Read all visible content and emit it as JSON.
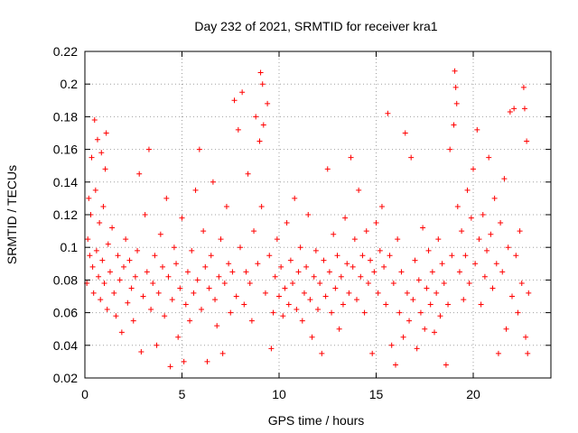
{
  "chart_data": {
    "type": "scatter",
    "title": "Day 232 of 2021, SRMTID for receiver kra1",
    "xlabel": "GPS time / hours",
    "ylabel": "SRMTID / TECUs",
    "xlim": [
      0,
      24
    ],
    "ylim": [
      0.02,
      0.22
    ],
    "x_ticks": [
      0,
      5,
      10,
      15,
      20
    ],
    "x_tick_labels": [
      "0",
      "5",
      "10",
      "15",
      "20"
    ],
    "y_ticks": [
      0.02,
      0.04,
      0.06,
      0.08,
      0.1,
      0.12,
      0.14,
      0.16,
      0.18,
      0.2,
      0.22
    ],
    "y_tick_labels": [
      "0.02",
      "0.04",
      "0.06",
      "0.08",
      "0.1",
      "0.12",
      "0.14",
      "0.16",
      "0.18",
      "0.2",
      "0.22"
    ],
    "grid": true,
    "marker": "+",
    "marker_color": "#ff0000",
    "series": [
      {
        "name": "SRMTID",
        "points": [
          [
            0.1,
            0.078
          ],
          [
            0.15,
            0.105
          ],
          [
            0.2,
            0.13
          ],
          [
            0.25,
            0.095
          ],
          [
            0.3,
            0.12
          ],
          [
            0.35,
            0.155
          ],
          [
            0.4,
            0.088
          ],
          [
            0.45,
            0.072
          ],
          [
            0.5,
            0.178
          ],
          [
            0.55,
            0.135
          ],
          [
            0.6,
            0.098
          ],
          [
            0.65,
            0.166
          ],
          [
            0.7,
            0.082
          ],
          [
            0.75,
            0.115
          ],
          [
            0.8,
            0.068
          ],
          [
            0.85,
            0.158
          ],
          [
            0.9,
            0.092
          ],
          [
            0.95,
            0.125
          ],
          [
            1.0,
            0.078
          ],
          [
            1.05,
            0.148
          ],
          [
            1.1,
            0.17
          ],
          [
            1.15,
            0.062
          ],
          [
            1.2,
            0.102
          ],
          [
            1.3,
            0.085
          ],
          [
            1.4,
            0.112
          ],
          [
            1.5,
            0.072
          ],
          [
            1.6,
            0.058
          ],
          [
            1.7,
            0.095
          ],
          [
            1.8,
            0.08
          ],
          [
            1.9,
            0.048
          ],
          [
            2.0,
            0.088
          ],
          [
            2.1,
            0.105
          ],
          [
            2.2,
            0.066
          ],
          [
            2.3,
            0.092
          ],
          [
            2.4,
            0.075
          ],
          [
            2.5,
            0.055
          ],
          [
            2.6,
            0.082
          ],
          [
            2.7,
            0.098
          ],
          [
            2.8,
            0.145
          ],
          [
            2.9,
            0.036
          ],
          [
            3.0,
            0.07
          ],
          [
            3.1,
            0.12
          ],
          [
            3.2,
            0.085
          ],
          [
            3.3,
            0.16
          ],
          [
            3.4,
            0.062
          ],
          [
            3.5,
            0.078
          ],
          [
            3.6,
            0.095
          ],
          [
            3.7,
            0.04
          ],
          [
            3.8,
            0.072
          ],
          [
            3.9,
            0.108
          ],
          [
            4.0,
            0.088
          ],
          [
            4.1,
            0.058
          ],
          [
            4.2,
            0.13
          ],
          [
            4.3,
            0.082
          ],
          [
            4.4,
            0.027
          ],
          [
            4.5,
            0.068
          ],
          [
            4.6,
            0.1
          ],
          [
            4.7,
            0.09
          ],
          [
            4.8,
            0.045
          ],
          [
            4.9,
            0.075
          ],
          [
            5.0,
            0.118
          ],
          [
            5.1,
            0.03
          ],
          [
            5.2,
            0.065
          ],
          [
            5.3,
            0.085
          ],
          [
            5.4,
            0.055
          ],
          [
            5.5,
            0.098
          ],
          [
            5.6,
            0.072
          ],
          [
            5.7,
            0.135
          ],
          [
            5.8,
            0.08
          ],
          [
            5.9,
            0.16
          ],
          [
            6.0,
            0.062
          ],
          [
            6.1,
            0.11
          ],
          [
            6.2,
            0.088
          ],
          [
            6.3,
            0.03
          ],
          [
            6.4,
            0.075
          ],
          [
            6.5,
            0.095
          ],
          [
            6.6,
            0.14
          ],
          [
            6.7,
            0.068
          ],
          [
            6.8,
            0.052
          ],
          [
            6.9,
            0.082
          ],
          [
            7.0,
            0.105
          ],
          [
            7.1,
            0.035
          ],
          [
            7.2,
            0.078
          ],
          [
            7.3,
            0.125
          ],
          [
            7.4,
            0.09
          ],
          [
            7.5,
            0.06
          ],
          [
            7.6,
            0.085
          ],
          [
            7.7,
            0.19
          ],
          [
            7.8,
            0.07
          ],
          [
            7.9,
            0.172
          ],
          [
            8.0,
            0.1
          ],
          [
            8.1,
            0.195
          ],
          [
            8.2,
            0.065
          ],
          [
            8.3,
            0.085
          ],
          [
            8.4,
            0.145
          ],
          [
            8.5,
            0.078
          ],
          [
            8.6,
            0.055
          ],
          [
            8.7,
            0.11
          ],
          [
            8.8,
            0.18
          ],
          [
            8.9,
            0.09
          ],
          [
            9.0,
            0.165
          ],
          [
            9.05,
            0.207
          ],
          [
            9.1,
            0.125
          ],
          [
            9.15,
            0.2
          ],
          [
            9.2,
            0.175
          ],
          [
            9.3,
            0.072
          ],
          [
            9.4,
            0.188
          ],
          [
            9.5,
            0.095
          ],
          [
            9.6,
            0.038
          ],
          [
            9.7,
            0.06
          ],
          [
            9.8,
            0.082
          ],
          [
            9.9,
            0.105
          ],
          [
            10.0,
            0.07
          ],
          [
            10.1,
            0.088
          ],
          [
            10.2,
            0.058
          ],
          [
            10.3,
            0.075
          ],
          [
            10.4,
            0.115
          ],
          [
            10.5,
            0.065
          ],
          [
            10.6,
            0.092
          ],
          [
            10.7,
            0.078
          ],
          [
            10.8,
            0.13
          ],
          [
            10.9,
            0.062
          ],
          [
            11.0,
            0.085
          ],
          [
            11.1,
            0.1
          ],
          [
            11.2,
            0.055
          ],
          [
            11.3,
            0.072
          ],
          [
            11.4,
            0.088
          ],
          [
            11.5,
            0.12
          ],
          [
            11.6,
            0.068
          ],
          [
            11.7,
            0.045
          ],
          [
            11.8,
            0.082
          ],
          [
            11.9,
            0.098
          ],
          [
            12.0,
            0.062
          ],
          [
            12.1,
            0.078
          ],
          [
            12.2,
            0.035
          ],
          [
            12.3,
            0.092
          ],
          [
            12.4,
            0.07
          ],
          [
            12.5,
            0.148
          ],
          [
            12.6,
            0.085
          ],
          [
            12.7,
            0.06
          ],
          [
            12.8,
            0.108
          ],
          [
            12.9,
            0.075
          ],
          [
            13.0,
            0.095
          ],
          [
            13.1,
            0.05
          ],
          [
            13.2,
            0.082
          ],
          [
            13.3,
            0.065
          ],
          [
            13.4,
            0.118
          ],
          [
            13.5,
            0.09
          ],
          [
            13.6,
            0.072
          ],
          [
            13.7,
            0.155
          ],
          [
            13.8,
            0.088
          ],
          [
            13.9,
            0.105
          ],
          [
            14.0,
            0.068
          ],
          [
            14.1,
            0.135
          ],
          [
            14.2,
            0.082
          ],
          [
            14.3,
            0.095
          ],
          [
            14.4,
            0.06
          ],
          [
            14.5,
            0.11
          ],
          [
            14.6,
            0.078
          ],
          [
            14.7,
            0.092
          ],
          [
            14.8,
            0.035
          ],
          [
            14.9,
            0.085
          ],
          [
            15.0,
            0.115
          ],
          [
            15.1,
            0.072
          ],
          [
            15.2,
            0.098
          ],
          [
            15.3,
            0.125
          ],
          [
            15.4,
            0.088
          ],
          [
            15.5,
            0.065
          ],
          [
            15.6,
            0.182
          ],
          [
            15.7,
            0.095
          ],
          [
            15.8,
            0.04
          ],
          [
            15.9,
            0.078
          ],
          [
            16.0,
            0.028
          ],
          [
            16.1,
            0.105
          ],
          [
            16.2,
            0.06
          ],
          [
            16.3,
            0.085
          ],
          [
            16.4,
            0.045
          ],
          [
            16.5,
            0.17
          ],
          [
            16.6,
            0.072
          ],
          [
            16.7,
            0.055
          ],
          [
            16.8,
            0.155
          ],
          [
            16.9,
            0.068
          ],
          [
            17.0,
            0.092
          ],
          [
            17.1,
            0.038
          ],
          [
            17.2,
            0.08
          ],
          [
            17.3,
            0.06
          ],
          [
            17.4,
            0.112
          ],
          [
            17.5,
            0.05
          ],
          [
            17.6,
            0.075
          ],
          [
            17.7,
            0.098
          ],
          [
            17.8,
            0.065
          ],
          [
            17.9,
            0.085
          ],
          [
            18.0,
            0.048
          ],
          [
            18.1,
            0.072
          ],
          [
            18.2,
            0.105
          ],
          [
            18.3,
            0.058
          ],
          [
            18.4,
            0.09
          ],
          [
            18.5,
            0.078
          ],
          [
            18.6,
            0.028
          ],
          [
            18.7,
            0.065
          ],
          [
            18.8,
            0.16
          ],
          [
            18.9,
            0.095
          ],
          [
            19.0,
            0.175
          ],
          [
            19.05,
            0.208
          ],
          [
            19.1,
            0.198
          ],
          [
            19.15,
            0.188
          ],
          [
            19.2,
            0.125
          ],
          [
            19.3,
            0.085
          ],
          [
            19.4,
            0.11
          ],
          [
            19.5,
            0.068
          ],
          [
            19.6,
            0.095
          ],
          [
            19.7,
            0.135
          ],
          [
            19.8,
            0.078
          ],
          [
            19.9,
            0.118
          ],
          [
            20.0,
            0.148
          ],
          [
            20.1,
            0.09
          ],
          [
            20.2,
            0.172
          ],
          [
            20.3,
            0.105
          ],
          [
            20.4,
            0.065
          ],
          [
            20.5,
            0.12
          ],
          [
            20.6,
            0.082
          ],
          [
            20.7,
            0.098
          ],
          [
            20.8,
            0.155
          ],
          [
            20.9,
            0.108
          ],
          [
            21.0,
            0.075
          ],
          [
            21.1,
            0.13
          ],
          [
            21.2,
            0.09
          ],
          [
            21.3,
            0.035
          ],
          [
            21.4,
            0.115
          ],
          [
            21.5,
            0.085
          ],
          [
            21.6,
            0.142
          ],
          [
            21.7,
            0.05
          ],
          [
            21.8,
            0.1
          ],
          [
            21.9,
            0.183
          ],
          [
            22.0,
            0.07
          ],
          [
            22.1,
            0.185
          ],
          [
            22.2,
            0.095
          ],
          [
            22.3,
            0.06
          ],
          [
            22.4,
            0.11
          ],
          [
            22.5,
            0.078
          ],
          [
            22.6,
            0.198
          ],
          [
            22.65,
            0.185
          ],
          [
            22.7,
            0.045
          ],
          [
            22.75,
            0.165
          ],
          [
            22.8,
            0.035
          ],
          [
            22.85,
            0.072
          ]
        ]
      }
    ]
  }
}
